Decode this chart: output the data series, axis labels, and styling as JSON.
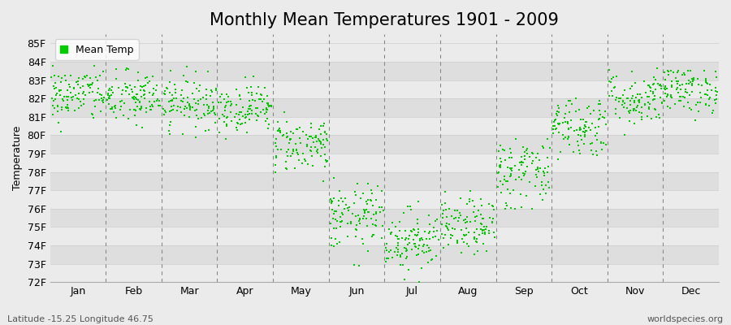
{
  "title": "Monthly Mean Temperatures 1901 - 2009",
  "ylabel": "Temperature",
  "xlabel_bottom_left": "Latitude -15.25 Longitude 46.75",
  "xlabel_bottom_right": "worldspecies.org",
  "ylim": [
    72,
    85.5
  ],
  "yticks": [
    72,
    73,
    74,
    75,
    76,
    77,
    78,
    79,
    80,
    81,
    82,
    83,
    84,
    85
  ],
  "ytick_labels": [
    "72F",
    "73F",
    "74F",
    "75F",
    "76F",
    "77F",
    "78F",
    "79F",
    "80F",
    "81F",
    "82F",
    "83F",
    "84F",
    "85F"
  ],
  "months": [
    "Jan",
    "Feb",
    "Mar",
    "Apr",
    "May",
    "Jun",
    "Jul",
    "Aug",
    "Sep",
    "Oct",
    "Nov",
    "Dec"
  ],
  "dot_color": "#00cc00",
  "dot_size": 3,
  "bg_light": "#ebebeb",
  "bg_dark": "#dedede",
  "dashed_line_color": "#888888",
  "legend_label": "Mean Temp",
  "seed": 42,
  "n_years": 109,
  "monthly_means": [
    82.2,
    82.0,
    81.8,
    81.5,
    79.5,
    75.5,
    74.3,
    75.0,
    78.0,
    80.5,
    82.0,
    82.5
  ],
  "monthly_stds": [
    0.75,
    0.75,
    0.7,
    0.65,
    0.75,
    0.9,
    0.85,
    0.75,
    1.0,
    0.85,
    0.75,
    0.65
  ],
  "monthly_mins": [
    79.0,
    79.0,
    79.5,
    79.5,
    77.5,
    72.2,
    72.0,
    73.0,
    76.0,
    78.5,
    80.0,
    80.5
  ],
  "monthly_maxs": [
    83.8,
    84.5,
    84.8,
    83.5,
    81.5,
    78.0,
    77.5,
    77.5,
    82.5,
    83.5,
    85.3,
    83.5
  ],
  "title_fontsize": 15,
  "axis_label_fontsize": 9,
  "tick_fontsize": 9
}
